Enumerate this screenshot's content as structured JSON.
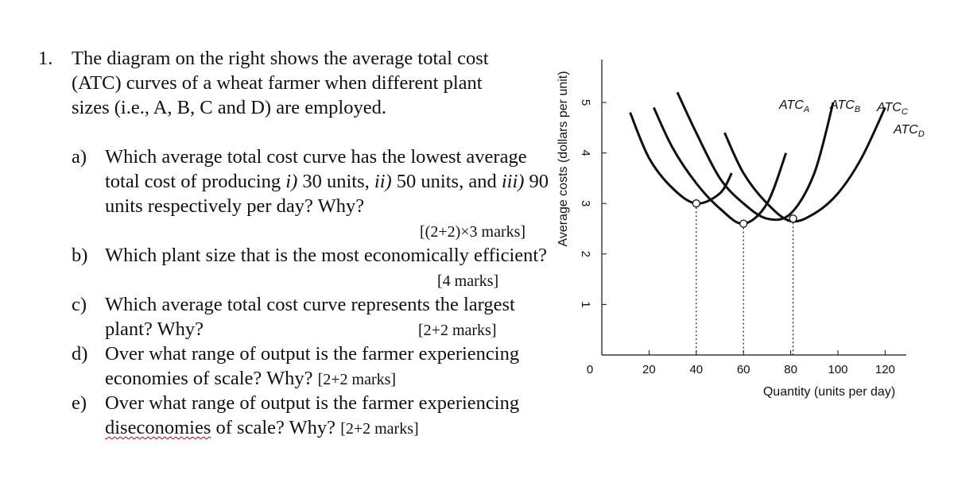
{
  "question": {
    "number": "1.",
    "intro": "The diagram on the right shows the average total cost (ATC) curves of a wheat farmer when different plant sizes (i.e., A, B, C and D) are employed.",
    "parts": [
      {
        "label": "a)",
        "text_pre": "Which average total cost curve has the lowest average total cost of producing ",
        "i1": "i)",
        "t1": " 30 units, ",
        "i2": "ii)",
        "t2": " 50 units, and ",
        "i3": "iii)",
        "t3": " 90 units respectively per day? Why?",
        "marks": "[(2+2)×3 marks]"
      },
      {
        "label": "b)",
        "text": "Which plant size that is the most economically efficient?",
        "marks": "[4 marks]"
      },
      {
        "label": "c)",
        "text": "Which average total cost curve represents the largest plant? Why?",
        "marks": "[2+2 marks]"
      },
      {
        "label": "d)",
        "text": "Over what range of output is the farmer experiencing economies of scale? Why?",
        "marks": "[2+2 marks]"
      },
      {
        "label": "e)",
        "text_pre": "Over what range of output is the farmer experiencing ",
        "word": "diseconomies",
        "text_post": " of scale? Why?",
        "marks": "[2+2 marks]"
      }
    ]
  },
  "chart_data": {
    "type": "line",
    "ylabel": "Average costs (dollars per unit)",
    "xlabel": "Quantity (units per day)",
    "x_ticks": [
      20,
      40,
      60,
      80,
      100,
      120
    ],
    "y_ticks": [
      1,
      2,
      3,
      4,
      5
    ],
    "origin_label": "0",
    "xlim": [
      0,
      130
    ],
    "ylim": [
      0,
      6
    ],
    "series": [
      {
        "name": "ATCA",
        "main": "ATC",
        "sub": "A",
        "x": [
          12,
          20,
          30,
          40,
          50,
          55
        ],
        "y": [
          4.8,
          3.9,
          3.3,
          3.0,
          3.2,
          3.6
        ]
      },
      {
        "name": "ATCB",
        "main": "ATC",
        "sub": "B",
        "x": [
          22,
          30,
          40,
          50,
          60,
          70,
          78
        ],
        "y": [
          4.9,
          4.1,
          3.4,
          2.9,
          2.6,
          3.0,
          4.0
        ]
      },
      {
        "name": "ATCC",
        "main": "ATC",
        "sub": "C",
        "x": [
          32,
          40,
          50,
          60,
          70,
          80,
          90,
          98
        ],
        "y": [
          5.2,
          4.4,
          3.5,
          3.0,
          2.7,
          2.8,
          3.6,
          5.0
        ]
      },
      {
        "name": "ATCD",
        "main": "ATC",
        "sub": "D",
        "x": [
          52,
          60,
          70,
          80,
          90,
          100,
          110,
          120
        ],
        "y": [
          4.4,
          3.6,
          3.0,
          2.65,
          2.8,
          3.2,
          3.9,
          4.9
        ]
      }
    ],
    "marked_points": [
      {
        "x": 40,
        "y": 3.0
      },
      {
        "x": 60,
        "y": 2.6
      },
      {
        "x": 81,
        "y": 2.7
      }
    ]
  },
  "colors": {
    "text": "#111111",
    "underline": "#c00000"
  }
}
